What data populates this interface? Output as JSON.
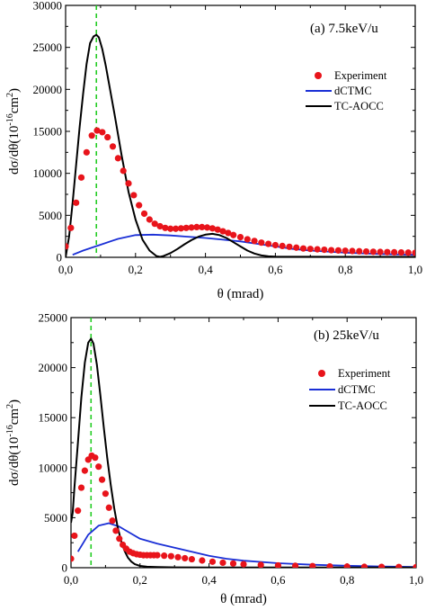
{
  "figure": {
    "panels": 2
  },
  "colors": {
    "experiment": "#e8141b",
    "dctmc": "#1a2fd6",
    "tcaocc": "#000000",
    "marker_line": "#22cc22"
  },
  "chart_data": [
    {
      "type": "line",
      "panel_label": "(a) 7.5keV/u",
      "xlabel": "θ (mrad)",
      "ylabel": "dσ/dθ(10⁻¹⁶cm²)",
      "ylabel_parts": {
        "base": "dσ/dθ(10",
        "exp1": "-16",
        "mid": "cm",
        "exp2": "2",
        "end": ")"
      },
      "xlim": [
        0.0,
        1.0
      ],
      "ylim": [
        0,
        30000
      ],
      "xticks": [
        "0,0",
        "0,2",
        "0,4",
        "0,6",
        "0,8",
        "1,0"
      ],
      "yticks": [
        "0",
        "5000",
        "10000",
        "15000",
        "20000",
        "25000",
        "30000"
      ],
      "xtick_values": [
        0.0,
        0.2,
        0.4,
        0.6,
        0.8,
        1.0
      ],
      "ytick_values": [
        0,
        5000,
        10000,
        15000,
        20000,
        25000,
        30000
      ],
      "legend_position": "right, below panel label",
      "vline_x": 0.088,
      "series": [
        {
          "name": "Experiment",
          "style": "markers",
          "x": [
            0.0,
            0.015,
            0.03,
            0.045,
            0.06,
            0.075,
            0.09,
            0.105,
            0.12,
            0.135,
            0.15,
            0.165,
            0.18,
            0.195,
            0.21,
            0.225,
            0.24,
            0.255,
            0.27,
            0.285,
            0.3,
            0.315,
            0.33,
            0.345,
            0.36,
            0.375,
            0.39,
            0.405,
            0.42,
            0.435,
            0.45,
            0.465,
            0.48,
            0.5,
            0.52,
            0.54,
            0.56,
            0.58,
            0.6,
            0.62,
            0.64,
            0.66,
            0.68,
            0.7,
            0.72,
            0.74,
            0.76,
            0.78,
            0.8,
            0.82,
            0.84,
            0.86,
            0.88,
            0.9,
            0.92,
            0.94,
            0.96,
            0.98,
            1.0
          ],
          "y": [
            1300,
            3500,
            6500,
            9500,
            12500,
            14500,
            15100,
            14900,
            14300,
            13200,
            11800,
            10300,
            8800,
            7400,
            6200,
            5200,
            4500,
            4000,
            3700,
            3500,
            3400,
            3400,
            3450,
            3500,
            3550,
            3600,
            3600,
            3550,
            3450,
            3300,
            3100,
            2900,
            2650,
            2400,
            2150,
            1950,
            1750,
            1600,
            1450,
            1350,
            1250,
            1150,
            1050,
            1000,
            950,
            900,
            850,
            820,
            780,
            750,
            720,
            690,
            660,
            640,
            620,
            600,
            580,
            560,
            540
          ]
        },
        {
          "name": "dCTMC",
          "style": "line",
          "x": [
            0.02,
            0.05,
            0.1,
            0.15,
            0.2,
            0.25,
            0.3,
            0.35,
            0.4,
            0.45,
            0.5,
            0.55,
            0.6,
            0.65,
            0.7,
            0.8,
            0.9,
            1.0
          ],
          "y": [
            300,
            800,
            1500,
            2200,
            2650,
            2700,
            2600,
            2450,
            2300,
            2100,
            1900,
            1600,
            1300,
            1000,
            800,
            550,
            400,
            300
          ]
        },
        {
          "name": "TC-AOCC",
          "style": "line",
          "x": [
            0.0,
            0.01,
            0.02,
            0.03,
            0.04,
            0.05,
            0.06,
            0.07,
            0.08,
            0.088,
            0.095,
            0.105,
            0.115,
            0.125,
            0.14,
            0.16,
            0.18,
            0.2,
            0.22,
            0.24,
            0.26,
            0.27,
            0.28,
            0.3,
            0.32,
            0.34,
            0.36,
            0.38,
            0.4,
            0.42,
            0.44,
            0.46,
            0.48,
            0.5,
            0.52,
            0.54,
            0.56,
            0.58,
            0.6,
            0.65,
            0.7,
            0.8,
            0.9,
            1.0
          ],
          "y": [
            0,
            2500,
            6500,
            11000,
            15500,
            19500,
            23000,
            25500,
            26300,
            26500,
            26200,
            24800,
            22800,
            20500,
            17000,
            12200,
            7800,
            4500,
            2100,
            800,
            150,
            50,
            150,
            500,
            1000,
            1550,
            2050,
            2450,
            2700,
            2800,
            2650,
            2300,
            1800,
            1300,
            800,
            450,
            220,
            120,
            80,
            60,
            60,
            50,
            50,
            50
          ]
        }
      ]
    },
    {
      "type": "line",
      "panel_label": "(b) 25keV/u",
      "xlabel": "θ (mrad)",
      "ylabel": "dσ/dθ(10⁻¹⁶cm²)",
      "ylabel_parts": {
        "base": "dσ/dθ(10",
        "exp1": "-16",
        "mid": "cm",
        "exp2": "2",
        "end": ")"
      },
      "xlim": [
        0.0,
        1.0
      ],
      "ylim": [
        0,
        25000
      ],
      "xticks": [
        "0,0",
        "0,2",
        "0,4",
        "0,6",
        "0,8",
        "1,0"
      ],
      "yticks": [
        "0",
        "5000",
        "10000",
        "15000",
        "20000",
        "25000"
      ],
      "xtick_values": [
        0.0,
        0.2,
        0.4,
        0.6,
        0.8,
        1.0
      ],
      "ytick_values": [
        0,
        5000,
        10000,
        15000,
        20000,
        25000
      ],
      "legend_position": "right, below panel label",
      "vline_x": 0.058,
      "series": [
        {
          "name": "Experiment",
          "style": "markers",
          "x": [
            0.0,
            0.01,
            0.02,
            0.03,
            0.04,
            0.05,
            0.06,
            0.07,
            0.08,
            0.09,
            0.1,
            0.11,
            0.12,
            0.13,
            0.14,
            0.15,
            0.16,
            0.17,
            0.18,
            0.19,
            0.2,
            0.21,
            0.22,
            0.23,
            0.24,
            0.25,
            0.27,
            0.29,
            0.31,
            0.33,
            0.35,
            0.38,
            0.41,
            0.44,
            0.47,
            0.5,
            0.55,
            0.6,
            0.65,
            0.7,
            0.75,
            0.8,
            0.85,
            0.9,
            0.95,
            1.0
          ],
          "y": [
            900,
            3200,
            5700,
            8000,
            9700,
            10800,
            11200,
            11000,
            10100,
            8800,
            7400,
            6000,
            4700,
            3700,
            2900,
            2300,
            1900,
            1600,
            1450,
            1350,
            1300,
            1250,
            1250,
            1250,
            1250,
            1250,
            1200,
            1150,
            1050,
            950,
            850,
            720,
            600,
            500,
            420,
            350,
            280,
            230,
            190,
            160,
            130,
            110,
            90,
            80,
            70,
            60
          ]
        },
        {
          "name": "dCTMC",
          "style": "line",
          "x": [
            0.02,
            0.05,
            0.08,
            0.11,
            0.14,
            0.17,
            0.2,
            0.25,
            0.3,
            0.35,
            0.4,
            0.45,
            0.5,
            0.6,
            0.7,
            0.8,
            0.9,
            1.0
          ],
          "y": [
            1600,
            3300,
            4200,
            4450,
            4100,
            3500,
            2900,
            2400,
            2000,
            1600,
            1200,
            900,
            700,
            450,
            300,
            200,
            130,
            80
          ]
        },
        {
          "name": "TC-AOCC",
          "style": "line",
          "x": [
            0.0,
            0.005,
            0.01,
            0.02,
            0.03,
            0.04,
            0.05,
            0.058,
            0.065,
            0.075,
            0.085,
            0.095,
            0.105,
            0.115,
            0.125,
            0.135,
            0.145,
            0.155,
            0.165,
            0.175,
            0.185,
            0.2,
            0.22,
            0.25,
            0.3,
            0.4,
            0.5,
            0.7,
            1.0
          ],
          "y": [
            4500,
            5500,
            8000,
            12500,
            17000,
            20500,
            22500,
            22900,
            22400,
            20300,
            17300,
            14000,
            11000,
            8300,
            6000,
            4100,
            2700,
            1700,
            1000,
            600,
            350,
            180,
            100,
            60,
            40,
            30,
            20,
            20,
            20
          ]
        }
      ]
    }
  ]
}
